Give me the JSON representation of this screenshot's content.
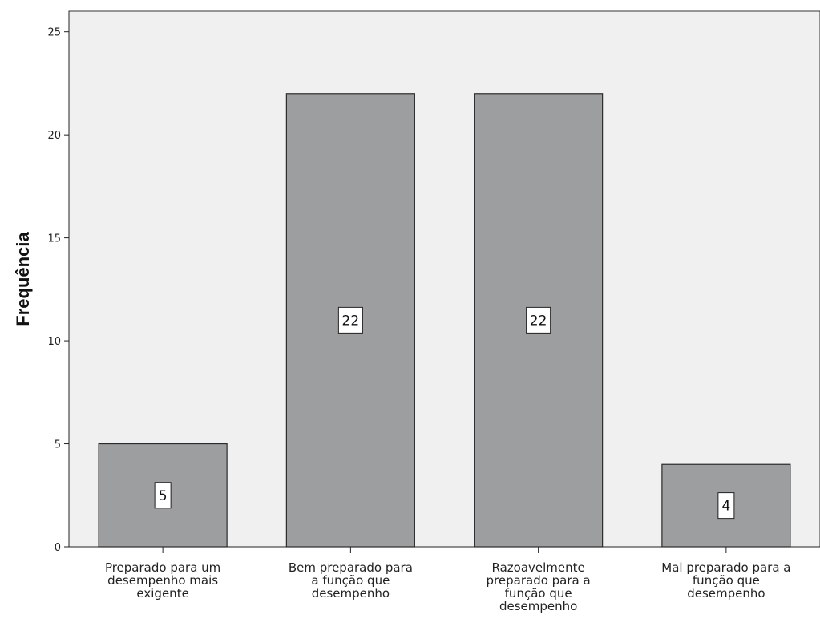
{
  "chart_data": {
    "type": "bar",
    "ylabel": "Frequência",
    "xlabel": "",
    "ylim": [
      0,
      26
    ],
    "yticks": [
      0,
      5,
      10,
      15,
      20,
      25
    ],
    "grid": false,
    "categories": [
      [
        "Preparado para um",
        "desempenho mais",
        "exigente"
      ],
      [
        "Bem preparado para",
        "a função que",
        "desempenho"
      ],
      [
        "Razoavelmente",
        "preparado para a",
        "função que",
        "desempenho"
      ],
      [
        "Mal preparado para a",
        "função que",
        "desempenho"
      ]
    ],
    "values": [
      5,
      22,
      22,
      4
    ],
    "data_labels": [
      "5",
      "22",
      "22",
      "4"
    ],
    "colors": {
      "bar": "#9d9ea0",
      "plot_bg": "#f0f0f0",
      "bar_stroke": "#2b2b2b"
    }
  }
}
